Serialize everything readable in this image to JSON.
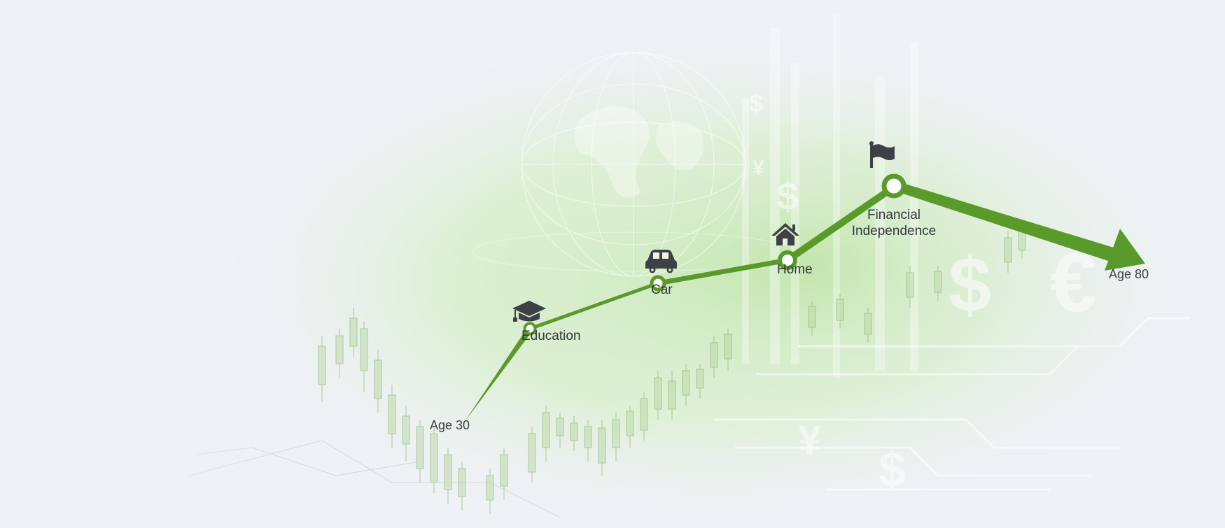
{
  "start_label": "Age 30",
  "end_label": "Age 80",
  "milestones": [
    {
      "label": "Education",
      "icon": "graduation-cap-icon"
    },
    {
      "label": "Car",
      "icon": "car-icon"
    },
    {
      "label": "Home",
      "icon": "house-icon"
    },
    {
      "label_line1": "Financial",
      "label_line2": "Independence",
      "icon": "flag-icon"
    }
  ],
  "colors": {
    "path_green": "#5a9a2b",
    "icon_dark": "#3d4044",
    "background": "#eef1f5",
    "glow_green": "#c9e9b4"
  },
  "background_symbols": [
    "$",
    "$",
    "$",
    "€",
    "¥",
    "¥",
    "$"
  ]
}
